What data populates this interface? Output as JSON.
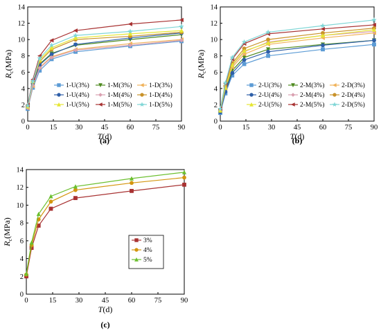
{
  "chart_data": [
    {
      "panel": "(a)",
      "type": "line",
      "xlabel": "T(d)",
      "ylabel": "Rc(MPa)",
      "xlim": [
        0,
        90
      ],
      "ylim": [
        0,
        14
      ],
      "xticks": [
        0,
        15,
        30,
        45,
        60,
        75,
        90
      ],
      "yticks": [
        0,
        2,
        4,
        6,
        8,
        10,
        12,
        14
      ],
      "grid": false,
      "legend_position": "bottom-right",
      "legend_columns": 3,
      "x": [
        0,
        3,
        7,
        14,
        28,
        60,
        90
      ],
      "series": [
        {
          "name": "1-U(3%)",
          "color": "#5b9bd5",
          "marker": "square",
          "values": [
            1.5,
            4.1,
            6.2,
            7.6,
            8.5,
            9.2,
            9.8
          ]
        },
        {
          "name": "1-M(3%)",
          "color": "#4e8a1f",
          "marker": "triangle-down",
          "values": [
            1.7,
            4.5,
            7.0,
            8.3,
            9.3,
            10.0,
            10.6
          ]
        },
        {
          "name": "1-D(3%)",
          "color": "#f0b25a",
          "marker": "triangle-left",
          "values": [
            1.6,
            4.3,
            6.6,
            7.9,
            8.8,
            9.5,
            10.0
          ]
        },
        {
          "name": "1-U(4%)",
          "color": "#2e5fa8",
          "marker": "hexagon",
          "values": [
            1.7,
            4.6,
            6.9,
            8.2,
            9.4,
            10.2,
            10.8
          ]
        },
        {
          "name": "1-M(4%)",
          "color": "#d9a0b0",
          "marker": "diamond",
          "values": [
            1.6,
            4.4,
            6.5,
            7.8,
            8.7,
            9.3,
            9.9
          ]
        },
        {
          "name": "1-D(4%)",
          "color": "#c9922a",
          "marker": "circle",
          "values": [
            1.8,
            4.8,
            7.3,
            8.8,
            10.0,
            10.4,
            10.9
          ]
        },
        {
          "name": "1-U(5%)",
          "color": "#e6e632",
          "marker": "triangle-up",
          "values": [
            1.8,
            4.9,
            7.5,
            9.0,
            10.2,
            10.7,
            11.1
          ]
        },
        {
          "name": "1-M(5%)",
          "color": "#a83232",
          "marker": "triangle-left",
          "values": [
            2.0,
            5.1,
            8.0,
            9.9,
            11.1,
            11.9,
            12.4
          ]
        },
        {
          "name": "1-D(5%)",
          "color": "#7fd6d6",
          "marker": "star",
          "values": [
            1.9,
            4.9,
            7.7,
            9.3,
            10.5,
            11.0,
            11.6
          ]
        }
      ]
    },
    {
      "panel": "(b)",
      "type": "line",
      "xlabel": "T(d)",
      "ylabel": "Rc(MPa)",
      "xlim": [
        0,
        90
      ],
      "ylim": [
        0,
        14
      ],
      "xticks": [
        0,
        15,
        30,
        45,
        60,
        75,
        90
      ],
      "yticks": [
        0,
        2,
        4,
        6,
        8,
        10,
        12,
        14
      ],
      "grid": false,
      "legend_position": "bottom-right",
      "legend_columns": 3,
      "x": [
        0,
        3,
        7,
        14,
        28,
        60,
        90
      ],
      "series": [
        {
          "name": "2-U(3%)",
          "color": "#5b9bd5",
          "marker": "square",
          "values": [
            1.0,
            3.4,
            5.6,
            7.0,
            8.0,
            8.8,
            9.4
          ]
        },
        {
          "name": "2-M(3%)",
          "color": "#4e8a1f",
          "marker": "triangle-down",
          "values": [
            1.2,
            3.8,
            6.2,
            7.8,
            8.8,
            9.4,
            9.9
          ]
        },
        {
          "name": "2-D(3%)",
          "color": "#f0b25a",
          "marker": "triangle-left",
          "values": [
            1.3,
            4.0,
            6.6,
            8.2,
            9.4,
            10.2,
            10.8
          ]
        },
        {
          "name": "2-U(4%)",
          "color": "#2e5fa8",
          "marker": "hexagon",
          "values": [
            1.1,
            3.6,
            5.9,
            7.5,
            8.5,
            9.3,
            9.9
          ]
        },
        {
          "name": "2-M(4%)",
          "color": "#d9a0b0",
          "marker": "diamond",
          "values": [
            1.3,
            4.1,
            6.8,
            8.5,
            9.7,
            10.5,
            11.0
          ]
        },
        {
          "name": "2-D(4%)",
          "color": "#c9922a",
          "marker": "circle",
          "values": [
            1.4,
            4.3,
            7.1,
            8.9,
            10.0,
            10.8,
            11.4
          ]
        },
        {
          "name": "2-U(5%)",
          "color": "#e6e632",
          "marker": "triangle-up",
          "values": [
            1.3,
            4.1,
            6.9,
            8.6,
            9.6,
            10.5,
            11.2
          ]
        },
        {
          "name": "2-M(5%)",
          "color": "#a83232",
          "marker": "triangle-left",
          "values": [
            1.5,
            4.6,
            7.6,
            9.5,
            10.7,
            11.3,
            11.8
          ]
        },
        {
          "name": "2-D(5%)",
          "color": "#7fd6d6",
          "marker": "star",
          "values": [
            1.5,
            4.7,
            7.8,
            9.7,
            10.9,
            11.7,
            12.4
          ]
        }
      ]
    },
    {
      "panel": "(c)",
      "type": "line",
      "xlabel": "T(d)",
      "ylabel": "Rc(MPa)",
      "xlim": [
        0,
        90
      ],
      "ylim": [
        0,
        14
      ],
      "xticks": [
        0,
        15,
        30,
        45,
        60,
        75,
        90
      ],
      "yticks": [
        0,
        2,
        4,
        6,
        8,
        10,
        12,
        14
      ],
      "grid": false,
      "legend_position": "center-right",
      "legend_columns": 1,
      "x": [
        0,
        3,
        7,
        14,
        28,
        60,
        90
      ],
      "series": [
        {
          "name": "3%",
          "color": "#a83232",
          "marker": "square",
          "values": [
            2.0,
            5.2,
            7.7,
            9.6,
            10.8,
            11.6,
            12.3
          ]
        },
        {
          "name": "4%",
          "color": "#d4960f",
          "marker": "circle",
          "values": [
            2.2,
            5.5,
            8.4,
            10.4,
            11.7,
            12.5,
            13.1
          ]
        },
        {
          "name": "5%",
          "color": "#6bbf2e",
          "marker": "triangle-up",
          "values": [
            2.3,
            5.8,
            9.0,
            11.0,
            12.1,
            13.0,
            13.7
          ]
        }
      ]
    }
  ]
}
